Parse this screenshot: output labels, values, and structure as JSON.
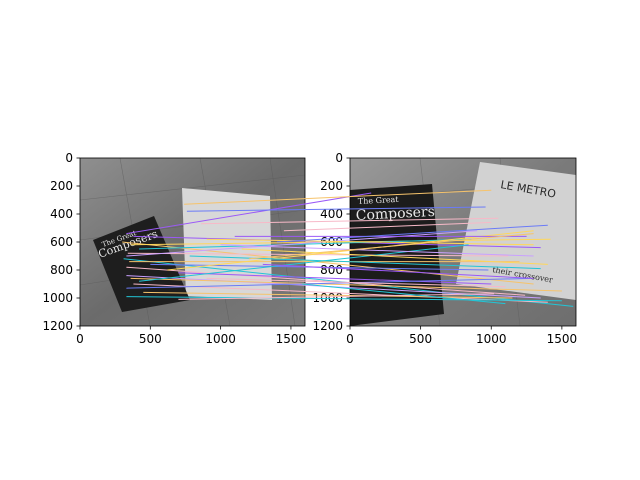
{
  "chart_data": {
    "type": "scatter",
    "title": "",
    "panels": [
      {
        "name": "left",
        "xlim": [
          0,
          1600
        ],
        "ylim": [
          1200,
          0
        ],
        "xticks": [
          "0",
          "500",
          "1000",
          "1500"
        ],
        "yticks": [
          "0",
          "200",
          "400",
          "600",
          "800",
          "1000",
          "1200"
        ],
        "cover_text": [
          "The Great",
          "Composers"
        ]
      },
      {
        "name": "right",
        "xlim": [
          0,
          1600
        ],
        "ylim": [
          1200,
          0
        ],
        "xticks": [
          "0",
          "500",
          "1000",
          "1500"
        ],
        "yticks": [
          "0",
          "200",
          "400",
          "600",
          "800",
          "1000",
          "1200"
        ],
        "cover_text": [
          "The Great",
          "Composers",
          "LE METRO",
          "their crossover"
        ]
      }
    ],
    "match_colors": [
      "#9b59f7",
      "#f6c36b",
      "#22c5d6",
      "#f7b9c8",
      "#c9a0ff",
      "#ffd75a",
      "#6b7bf7"
    ],
    "matches": [
      {
        "from": [
          330,
          540
        ],
        "to": [
          150,
          250
        ],
        "color": "#9b59f7"
      },
      {
        "from": [
          740,
          330
        ],
        "to": [
          1000,
          230
        ],
        "color": "#f6c36b"
      },
      {
        "from": [
          760,
          380
        ],
        "to": [
          960,
          350
        ],
        "color": "#6b7bf7"
      },
      {
        "from": [
          860,
          470
        ],
        "to": [
          1050,
          430
        ],
        "color": "#f7b9c8"
      },
      {
        "from": [
          380,
          560
        ],
        "to": [
          1350,
          640
        ],
        "color": "#9b59f7"
      },
      {
        "from": [
          300,
          600
        ],
        "to": [
          1300,
          900
        ],
        "color": "#f6c36b"
      },
      {
        "from": [
          360,
          620
        ],
        "to": [
          1420,
          580
        ],
        "color": "#ffd75a"
      },
      {
        "from": [
          420,
          650
        ],
        "to": [
          860,
          580
        ],
        "color": "#22c5d6"
      },
      {
        "from": [
          340,
          680
        ],
        "to": [
          1120,
          700
        ],
        "color": "#f7b9c8"
      },
      {
        "from": [
          330,
          700
        ],
        "to": [
          900,
          520
        ],
        "color": "#c9a0ff"
      },
      {
        "from": [
          310,
          720
        ],
        "to": [
          1580,
          1060
        ],
        "color": "#22c5d6"
      },
      {
        "from": [
          350,
          740
        ],
        "to": [
          1200,
          740
        ],
        "color": "#f6c36b"
      },
      {
        "from": [
          500,
          760
        ],
        "to": [
          980,
          800
        ],
        "color": "#6b7bf7"
      },
      {
        "from": [
          330,
          780
        ],
        "to": [
          1240,
          980
        ],
        "color": "#f7b9c8"
      },
      {
        "from": [
          620,
          800
        ],
        "to": [
          1300,
          520
        ],
        "color": "#ffd75a"
      },
      {
        "from": [
          700,
          820
        ],
        "to": [
          1000,
          900
        ],
        "color": "#9b59f7"
      },
      {
        "from": [
          330,
          840
        ],
        "to": [
          1350,
          1000
        ],
        "color": "#c9a0ff"
      },
      {
        "from": [
          360,
          860
        ],
        "to": [
          1500,
          950
        ],
        "color": "#f6c36b"
      },
      {
        "from": [
          420,
          880
        ],
        "to": [
          840,
          620
        ],
        "color": "#22c5d6"
      },
      {
        "from": [
          380,
          900
        ],
        "to": [
          1400,
          1030
        ],
        "color": "#f7b9c8"
      },
      {
        "from": [
          330,
          930
        ],
        "to": [
          1280,
          860
        ],
        "color": "#6b7bf7"
      },
      {
        "from": [
          450,
          960
        ],
        "to": [
          1150,
          1000
        ],
        "color": "#f6c36b"
      },
      {
        "from": [
          330,
          990
        ],
        "to": [
          1500,
          1020
        ],
        "color": "#22c5d6"
      },
      {
        "from": [
          700,
          1010
        ],
        "to": [
          1020,
          970
        ],
        "color": "#f7b9c8"
      },
      {
        "from": [
          1100,
          560
        ],
        "to": [
          1250,
          560
        ],
        "color": "#9b59f7"
      },
      {
        "from": [
          900,
          580
        ],
        "to": [
          1300,
          620
        ],
        "color": "#ffd75a"
      },
      {
        "from": [
          1000,
          620
        ],
        "to": [
          1300,
          700
        ],
        "color": "#c9a0ff"
      },
      {
        "from": [
          780,
          700
        ],
        "to": [
          1350,
          790
        ],
        "color": "#22c5d6"
      },
      {
        "from": [
          1200,
          720
        ],
        "to": [
          1300,
          540
        ],
        "color": "#f6c36b"
      },
      {
        "from": [
          1450,
          520
        ],
        "to": [
          1000,
          460
        ],
        "color": "#f7b9c8"
      },
      {
        "from": [
          1400,
          600
        ],
        "to": [
          1400,
          480
        ],
        "color": "#6b7bf7"
      },
      {
        "from": [
          1150,
          650
        ],
        "to": [
          1400,
          760
        ],
        "color": "#ffd75a"
      },
      {
        "from": [
          1300,
          760
        ],
        "to": [
          1300,
          860
        ],
        "color": "#9b59f7"
      },
      {
        "from": [
          900,
          860
        ],
        "to": [
          1100,
          920
        ],
        "color": "#f7b9c8"
      },
      {
        "from": [
          1580,
          900
        ],
        "to": [
          1100,
          1040
        ],
        "color": "#22c5d6"
      }
    ]
  }
}
